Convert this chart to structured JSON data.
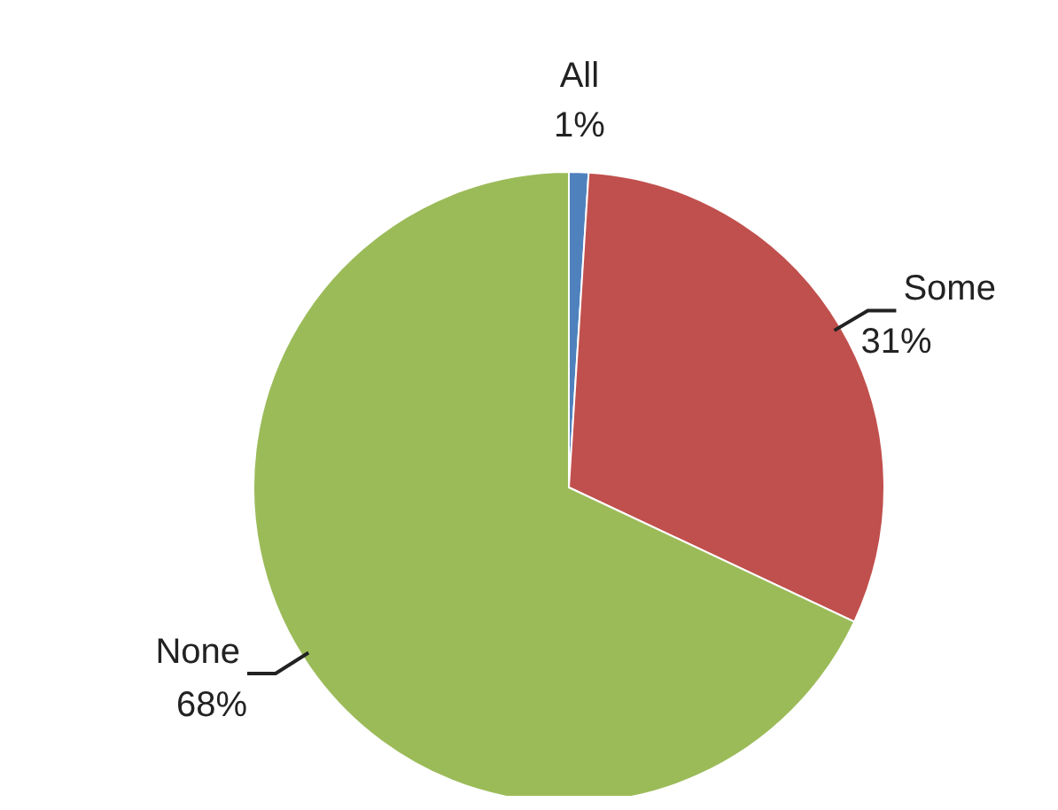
{
  "chart_data": {
    "type": "pie",
    "categories": [
      "All",
      "Some",
      "None"
    ],
    "values": [
      1,
      31,
      68
    ],
    "colors": [
      "#4f81bd",
      "#c0504d",
      "#9bbb59"
    ],
    "value_labels": [
      "1%",
      "31%",
      "68%"
    ],
    "legend": false
  }
}
